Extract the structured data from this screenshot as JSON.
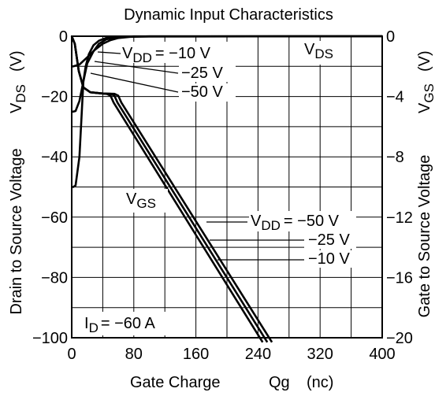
{
  "chart_data": {
    "type": "line",
    "title": "Dynamic Input Characteristics",
    "xlabel": {
      "prefix": "Gate Charge",
      "symbol": "Qg",
      "unit": "(nc)"
    },
    "ylabel_left": {
      "text": "Drain to Source Voltage",
      "symbol": "V",
      "sub": "DS",
      "unit": "(V)"
    },
    "ylabel_right": {
      "text": "Gate to Source Voltage",
      "symbol": "V",
      "sub": "GS",
      "unit": "(V)"
    },
    "x_ticks": [
      "0",
      "80",
      "160",
      "240",
      "320",
      "400"
    ],
    "y_left_ticks": [
      "0",
      "−20",
      "−40",
      "−60",
      "−80",
      "−100"
    ],
    "y_right_ticks": [
      "0",
      "−4",
      "−8",
      "−12",
      "−16",
      "−20"
    ],
    "xlim": [
      0,
      400
    ],
    "ylim_left": [
      -100,
      0
    ],
    "ylim_right": [
      -20,
      0
    ],
    "grid": true,
    "condition": {
      "symbol": "I",
      "sub": "D",
      "rest": "= −60 A"
    },
    "labels": {
      "vds": {
        "symbol": "V",
        "sub": "DS"
      },
      "vgs": {
        "symbol": "V",
        "sub": "GS"
      },
      "vdd_top": {
        "symbol": "V",
        "sub": "DD",
        "rest": "= −10 V"
      },
      "vdd_top_2": "−25 V",
      "vdd_top_3": "−50 V",
      "vdd_bottom": {
        "symbol": "V",
        "sub": "DD",
        "rest": "= −50 V"
      },
      "vdd_bottom_2": "−25 V",
      "vdd_bottom_3": "−10 V"
    },
    "series": [
      {
        "name": "V_DS, V_DD = −10 V",
        "axis": "left",
        "points": [
          [
            0,
            -10
          ],
          [
            2,
            -10
          ],
          [
            10,
            -9.4
          ],
          [
            20,
            -7
          ],
          [
            30,
            -4.5
          ],
          [
            40,
            -2.5
          ],
          [
            50,
            -1.3
          ],
          [
            60,
            -0.6
          ],
          [
            75,
            -0.2
          ],
          [
            100,
            -0.05
          ],
          [
            400,
            0
          ]
        ]
      },
      {
        "name": "V_DS, V_DD = −25 V",
        "axis": "left",
        "points": [
          [
            0,
            -25
          ],
          [
            2,
            -25
          ],
          [
            5,
            -24.8
          ],
          [
            10,
            -21.5
          ],
          [
            15,
            -15
          ],
          [
            20,
            -9
          ],
          [
            28,
            -5
          ],
          [
            35,
            -2.5
          ],
          [
            45,
            -1
          ],
          [
            60,
            -0.3
          ],
          [
            80,
            -0.05
          ],
          [
            400,
            0
          ]
        ]
      },
      {
        "name": "V_DS, V_DD = −50 V",
        "axis": "left",
        "points": [
          [
            0,
            -50
          ],
          [
            2,
            -50
          ],
          [
            5,
            -49.5
          ],
          [
            10,
            -40
          ],
          [
            13,
            -25
          ],
          [
            15,
            -15
          ],
          [
            18,
            -10
          ],
          [
            22,
            -6
          ],
          [
            28,
            -3
          ],
          [
            35,
            -1.5
          ],
          [
            45,
            -0.5
          ],
          [
            60,
            -0.1
          ],
          [
            400,
            0
          ]
        ]
      },
      {
        "name": "V_GS, V_DD = −50 V",
        "axis": "right",
        "points": [
          [
            0,
            0
          ],
          [
            4,
            -0.5
          ],
          [
            9,
            -2.3
          ],
          [
            15,
            -3.4
          ],
          [
            24,
            -3.72
          ],
          [
            40,
            -3.8
          ],
          [
            55,
            -3.82
          ],
          [
            60,
            -3.95
          ],
          [
            64,
            -4.4
          ],
          [
            258,
            -20.3
          ]
        ]
      },
      {
        "name": "V_GS, V_DD = −25 V",
        "axis": "right",
        "points": [
          [
            0,
            0
          ],
          [
            4,
            -0.5
          ],
          [
            9,
            -2.3
          ],
          [
            15,
            -3.4
          ],
          [
            24,
            -3.72
          ],
          [
            40,
            -3.8
          ],
          [
            50,
            -3.82
          ],
          [
            55,
            -3.95
          ],
          [
            59,
            -4.4
          ],
          [
            252,
            -20.3
          ]
        ]
      },
      {
        "name": "V_GS, V_DD = −10 V",
        "axis": "right",
        "points": [
          [
            0,
            0
          ],
          [
            4,
            -0.5
          ],
          [
            9,
            -2.3
          ],
          [
            15,
            -3.4
          ],
          [
            24,
            -3.72
          ],
          [
            40,
            -3.8
          ],
          [
            45,
            -3.82
          ],
          [
            50,
            -3.95
          ],
          [
            54,
            -4.4
          ],
          [
            246,
            -20.3
          ]
        ]
      }
    ]
  }
}
